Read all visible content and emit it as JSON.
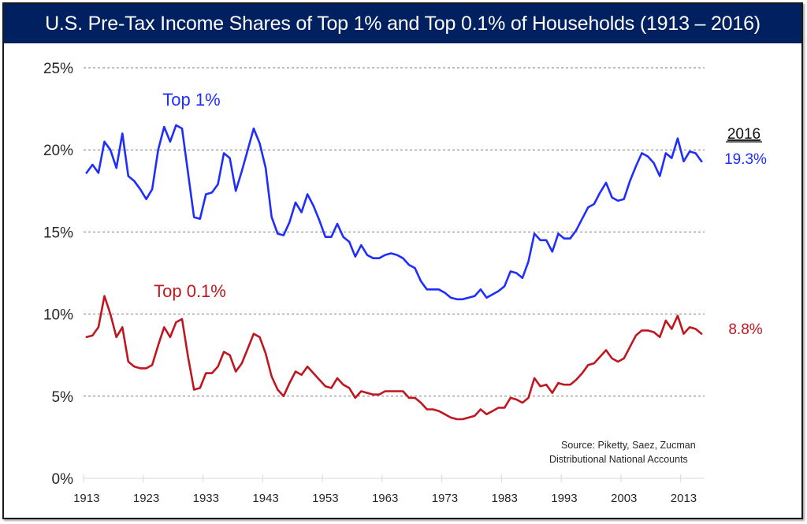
{
  "title": "U.S. Pre-Tax Income Shares of Top 1% and Top 0.1% of Households (1913 – 2016)",
  "colors": {
    "title_bg": "#002060",
    "top1": "#1f2dff",
    "top01": "#c0161f",
    "grid": "#7f7f7f",
    "axis": "#d9d9d9"
  },
  "chart_data": {
    "type": "line",
    "title": "U.S. Pre-Tax Income Shares of Top 1% and Top 0.1% of Households (1913 – 2016)",
    "xlabel": "",
    "ylabel": "",
    "ylim": [
      0,
      25
    ],
    "yticks": [
      0,
      5,
      10,
      15,
      20,
      25
    ],
    "ytick_labels": [
      "0%",
      "5%",
      "10%",
      "15%",
      "20%",
      "25%"
    ],
    "xlim": [
      1913,
      2016
    ],
    "xtick_labels": [
      "1913",
      "1923",
      "1933",
      "1943",
      "1953",
      "1963",
      "1973",
      "1983",
      "1993",
      "2003",
      "2013"
    ],
    "grid": "horizontal-dashed",
    "x_start": 1913,
    "series": [
      {
        "name": "Top 1%",
        "color": "#1f2dff",
        "label": "Top 1%",
        "end_label": "19.3%",
        "values": [
          18.6,
          19.1,
          18.6,
          20.5,
          20.0,
          18.9,
          21.0,
          18.4,
          18.1,
          17.6,
          17.0,
          17.6,
          20.0,
          21.4,
          20.5,
          21.5,
          21.3,
          18.6,
          15.9,
          15.8,
          17.3,
          17.4,
          17.9,
          19.8,
          19.5,
          17.5,
          18.7,
          20.0,
          21.3,
          20.4,
          18.9,
          15.9,
          14.9,
          14.8,
          15.6,
          16.8,
          16.2,
          17.3,
          16.6,
          15.7,
          14.7,
          14.7,
          15.5,
          14.7,
          14.4,
          13.5,
          14.2,
          13.6,
          13.4,
          13.4,
          13.6,
          13.7,
          13.6,
          13.4,
          13.0,
          12.8,
          12.0,
          11.5,
          11.5,
          11.5,
          11.3,
          11.0,
          10.9,
          10.9,
          11.0,
          11.1,
          11.5,
          11.0,
          11.2,
          11.4,
          11.7,
          12.6,
          12.5,
          12.2,
          13.2,
          14.9,
          14.5,
          14.5,
          13.8,
          14.9,
          14.6,
          14.6,
          15.1,
          15.8,
          16.5,
          16.7,
          17.4,
          18.0,
          17.1,
          16.9,
          17.0,
          18.1,
          19.0,
          19.8,
          19.6,
          19.2,
          18.4,
          19.8,
          19.5,
          20.7,
          19.3,
          19.9,
          19.8,
          19.3
        ]
      },
      {
        "name": "Top 0.1%",
        "color": "#c0161f",
        "label": "Top 0.1%",
        "end_label": "8.8%",
        "values": [
          8.6,
          8.7,
          9.2,
          11.1,
          10.0,
          8.6,
          9.2,
          7.1,
          6.8,
          6.7,
          6.7,
          6.9,
          8.1,
          9.2,
          8.6,
          9.5,
          9.7,
          7.4,
          5.4,
          5.5,
          6.4,
          6.4,
          6.8,
          7.7,
          7.5,
          6.5,
          7.0,
          7.9,
          8.8,
          8.6,
          7.6,
          6.2,
          5.4,
          5.0,
          5.8,
          6.5,
          6.3,
          6.8,
          6.4,
          6.0,
          5.6,
          5.5,
          6.1,
          5.7,
          5.5,
          4.9,
          5.3,
          5.2,
          5.1,
          5.1,
          5.3,
          5.3,
          5.3,
          5.3,
          4.9,
          4.9,
          4.6,
          4.2,
          4.2,
          4.1,
          3.9,
          3.7,
          3.6,
          3.6,
          3.7,
          3.8,
          4.2,
          3.9,
          4.1,
          4.3,
          4.3,
          4.9,
          4.8,
          4.6,
          4.9,
          6.1,
          5.6,
          5.7,
          5.2,
          5.8,
          5.7,
          5.7,
          6.0,
          6.4,
          6.9,
          7.0,
          7.4,
          7.8,
          7.3,
          7.1,
          7.3,
          8.0,
          8.7,
          9.0,
          9.0,
          8.9,
          8.6,
          9.6,
          9.1,
          9.9,
          8.8,
          9.2,
          9.1,
          8.8
        ]
      }
    ],
    "annotations": {
      "end_year": "2016",
      "source_line1": "Source:  Piketty, Saez, Zucman",
      "source_line2": "Distributional National Accounts"
    },
    "legend": "inline-labels"
  }
}
